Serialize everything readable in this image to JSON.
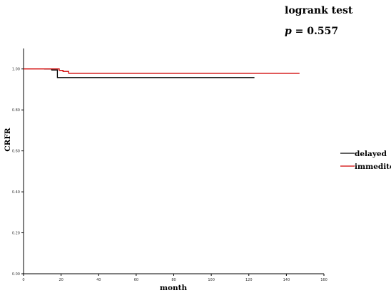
{
  "annotation": {
    "test_label": "logrank test",
    "p_symbol": "p",
    "p_text": " = 0.557"
  },
  "chart_data": {
    "type": "line",
    "xlabel": "month",
    "ylabel": "CRFR",
    "xlim": [
      0,
      160
    ],
    "ylim": [
      0,
      1.1
    ],
    "x_ticks": [
      0,
      20,
      40,
      60,
      80,
      100,
      120,
      140,
      160
    ],
    "y_ticks": [
      0.0,
      0.2,
      0.4,
      0.6,
      0.8,
      1.0
    ],
    "x_tick_labels": [
      "0",
      "20",
      "40",
      "60",
      "80",
      "100",
      "120",
      "140",
      "160"
    ],
    "y_tick_labels": [
      "0.00",
      "0.20",
      "0.40",
      "0.60",
      "0.80",
      "1.00"
    ],
    "legend_position": "right",
    "step": true,
    "grid": false,
    "series": [
      {
        "name": "delayed",
        "color": "#000000",
        "points": [
          [
            11,
            1.0
          ],
          [
            15,
            1.0
          ],
          [
            15,
            0.995
          ],
          [
            18,
            0.995
          ],
          [
            18,
            0.958
          ],
          [
            123,
            0.958
          ]
        ]
      },
      {
        "name": "immedite",
        "color": "#d10000",
        "points": [
          [
            0,
            1.0
          ],
          [
            19,
            1.0
          ],
          [
            19,
            0.993
          ],
          [
            21,
            0.993
          ],
          [
            21,
            0.988
          ],
          [
            24,
            0.988
          ],
          [
            24,
            0.979
          ],
          [
            147,
            0.979
          ]
        ]
      }
    ]
  }
}
